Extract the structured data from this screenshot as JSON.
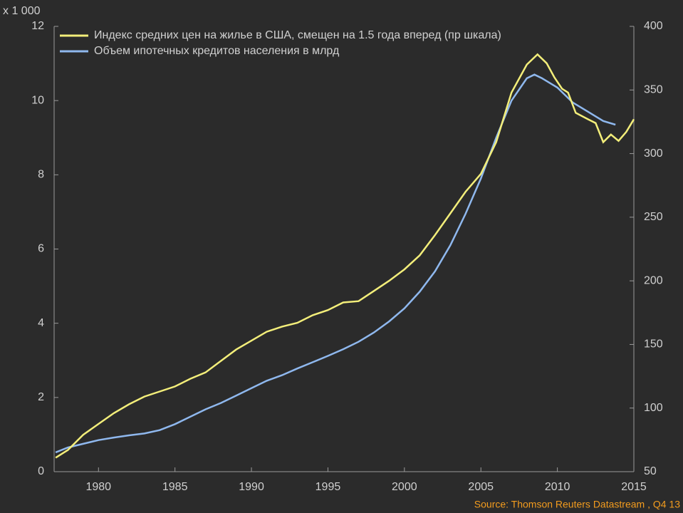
{
  "chart_data": {
    "type": "line",
    "y_label": "x 1 000",
    "source": "Source: Thomson Reuters Datastream , Q4 13",
    "xlim": [
      1977.1,
      2015
    ],
    "xticks": [
      1980,
      1985,
      1990,
      1995,
      2000,
      2005,
      2010,
      2015
    ],
    "ylim": [
      0,
      12
    ],
    "yticks": [
      0,
      2,
      4,
      6,
      8,
      10,
      12
    ],
    "y2lim": [
      50,
      400
    ],
    "y2ticks": [
      50,
      100,
      150,
      200,
      250,
      300,
      350,
      400
    ],
    "legend": "top-left",
    "series": [
      {
        "name": "Индекс средних цен на жилье в США, смещен на 1.5 года вперед (пр шкала)",
        "color": "#f3ee7a",
        "axis": "y2",
        "x": [
          1977.2,
          1978,
          1979,
          1980,
          1981,
          1982,
          1983,
          1984,
          1985,
          1986,
          1987,
          1988,
          1989,
          1990,
          1991,
          1992,
          1993,
          1994,
          1995,
          1996,
          1997,
          1998,
          1999,
          2000,
          2001,
          2002,
          2003,
          2004,
          2005,
          2006,
          2007,
          2008,
          2008.7,
          2009.3,
          2009.8,
          2010.3,
          2010.7,
          2011.2,
          2012,
          2012.5,
          2013,
          2013.5,
          2014,
          2014.5,
          2015
        ],
        "values": [
          61,
          67,
          79,
          87.5,
          96,
          103,
          109,
          113,
          117,
          123,
          128,
          137,
          146,
          153,
          160,
          164,
          167,
          173,
          177,
          183,
          184,
          192,
          200,
          209,
          220,
          236,
          253,
          270,
          284,
          309,
          348,
          370,
          378,
          371,
          360,
          351,
          348,
          332,
          327,
          324,
          309,
          315,
          310,
          317,
          327
        ]
      },
      {
        "name": "Объем ипотечных кредитов населения в млрд",
        "color": "#8fb8ee",
        "x": [
          1977.2,
          1978,
          1979,
          1980,
          1981,
          1982,
          1983,
          1984,
          1985,
          1986,
          1987,
          1988,
          1989,
          1990,
          1991,
          1992,
          1993,
          1994,
          1995,
          1996,
          1997,
          1998,
          1999,
          2000,
          2001,
          2002,
          2003,
          2004,
          2005,
          2006,
          2007,
          2008,
          2008.5,
          2009,
          2010,
          2011,
          2012,
          2013,
          2013.8
        ],
        "values": [
          0.52,
          0.65,
          0.75,
          0.85,
          0.92,
          0.98,
          1.03,
          1.12,
          1.28,
          1.48,
          1.68,
          1.85,
          2.05,
          2.25,
          2.45,
          2.6,
          2.78,
          2.95,
          3.12,
          3.3,
          3.5,
          3.75,
          4.05,
          4.4,
          4.85,
          5.4,
          6.1,
          6.95,
          7.9,
          9.0,
          10.0,
          10.6,
          10.7,
          10.6,
          10.35,
          9.95,
          9.7,
          9.45,
          9.35
        ]
      }
    ]
  }
}
